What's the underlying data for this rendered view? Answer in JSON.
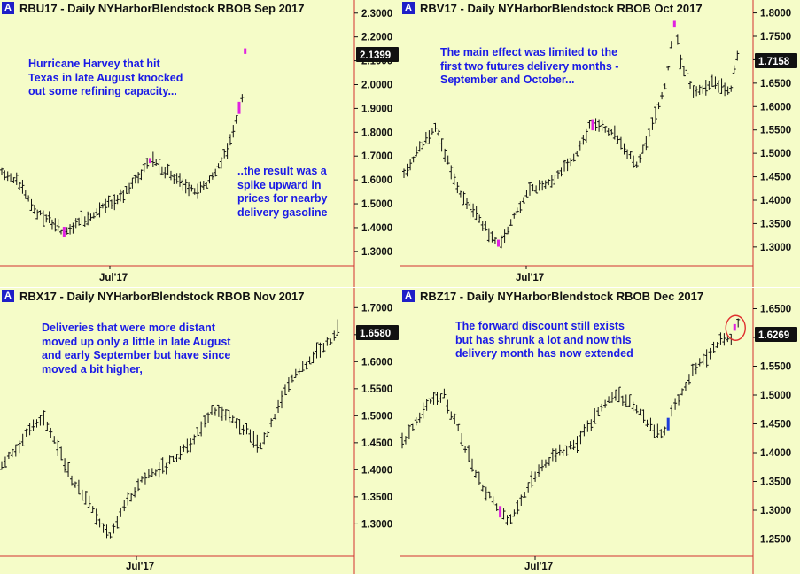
{
  "chart_data": [
    {
      "type": "ohlc",
      "badge": "A",
      "title": "RBU17 - Daily  NYHarborBlendstock RBOB Sep 2017",
      "yticks": [
        "2.3000",
        "2.2000",
        "2.1000",
        "2.0000",
        "1.9000",
        "1.8000",
        "1.7000",
        "1.6000",
        "1.5000",
        "1.4000",
        "1.3000"
      ],
      "ylim": [
        1.24,
        2.34
      ],
      "last_label": "2.1399",
      "last_value": 2.1399,
      "xlabel": "Jul'17",
      "annotations": [
        {
          "text": "Hurricane Harvey that hit\nTexas in late August knocked\nout some refining capacity..."
        },
        {
          "text": "..the result was a\nspike upward in\nprices for nearby\ndelivery gasoline"
        }
      ],
      "highlight_color": "#e020e0",
      "path": [
        [
          0,
          1.64
        ],
        [
          6,
          1.58
        ],
        [
          12,
          1.46
        ],
        [
          17,
          1.42
        ],
        [
          21,
          1.38
        ],
        [
          26,
          1.42
        ],
        [
          31,
          1.46
        ],
        [
          36,
          1.5
        ],
        [
          42,
          1.55
        ],
        [
          47,
          1.62
        ],
        [
          50,
          1.68
        ],
        [
          53,
          1.66
        ],
        [
          57,
          1.62
        ],
        [
          62,
          1.57
        ],
        [
          66,
          1.55
        ],
        [
          70,
          1.6
        ],
        [
          73,
          1.66
        ],
        [
          76,
          1.72
        ],
        [
          78,
          1.8
        ],
        [
          80,
          1.9
        ],
        [
          81,
          1.94
        ],
        [
          82,
          2.14
        ]
      ]
    },
    {
      "type": "ohlc",
      "badge": "A",
      "title": "RBV17 - Daily  NYHarborBlendstock RBOB Oct 2017",
      "yticks": [
        "1.8000",
        "1.7500",
        "1.7000",
        "1.6500",
        "1.6000",
        "1.5500",
        "1.5000",
        "1.4500",
        "1.4000",
        "1.3500",
        "1.3000"
      ],
      "ylim": [
        1.26,
        1.82
      ],
      "last_label": "1.7158",
      "last_value": 1.7158,
      "xlabel": "Jul'17",
      "annotations": [
        {
          "text": "The main effect was limited to the\nfirst two futures delivery months -\nSeptember and October..."
        }
      ],
      "highlight_color": "#e020e0",
      "path": [
        [
          0,
          1.46
        ],
        [
          6,
          1.52
        ],
        [
          10,
          1.56
        ],
        [
          14,
          1.48
        ],
        [
          19,
          1.4
        ],
        [
          24,
          1.36
        ],
        [
          28,
          1.32
        ],
        [
          31,
          1.31
        ],
        [
          35,
          1.37
        ],
        [
          40,
          1.42
        ],
        [
          45,
          1.43
        ],
        [
          50,
          1.46
        ],
        [
          55,
          1.5
        ],
        [
          59,
          1.56
        ],
        [
          63,
          1.56
        ],
        [
          67,
          1.54
        ],
        [
          71,
          1.5
        ],
        [
          74,
          1.48
        ],
        [
          77,
          1.52
        ],
        [
          80,
          1.58
        ],
        [
          83,
          1.64
        ],
        [
          86,
          1.78
        ],
        [
          88,
          1.7
        ],
        [
          91,
          1.64
        ],
        [
          94,
          1.63
        ],
        [
          98,
          1.65
        ],
        [
          101,
          1.64
        ],
        [
          104,
          1.64
        ],
        [
          106,
          1.71
        ]
      ]
    },
    {
      "type": "ohlc",
      "badge": "A",
      "title": "RBX17 - Daily  NYHarborBlendstock RBOB Nov 2017",
      "yticks": [
        "1.7000",
        "1.6500",
        "1.6000",
        "1.5500",
        "1.5000",
        "1.4500",
        "1.4000",
        "1.3500",
        "1.3000"
      ],
      "ylim": [
        1.24,
        1.73
      ],
      "last_label": "1.6580",
      "last_value": 1.658,
      "xlabel": "Jul'17",
      "annotations": [
        {
          "text": "Deliveries that were more distant\nmoved up only a little in late August\nand early September but have since\nmoved a bit higher,"
        }
      ],
      "highlight_color": "#e020e0",
      "path": [
        [
          0,
          1.41
        ],
        [
          4,
          1.44
        ],
        [
          8,
          1.48
        ],
        [
          12,
          1.5
        ],
        [
          16,
          1.44
        ],
        [
          20,
          1.38
        ],
        [
          24,
          1.35
        ],
        [
          28,
          1.3
        ],
        [
          31,
          1.28
        ],
        [
          35,
          1.33
        ],
        [
          40,
          1.38
        ],
        [
          45,
          1.4
        ],
        [
          50,
          1.42
        ],
        [
          55,
          1.46
        ],
        [
          60,
          1.51
        ],
        [
          65,
          1.5
        ],
        [
          70,
          1.47
        ],
        [
          74,
          1.44
        ],
        [
          78,
          1.5
        ],
        [
          82,
          1.56
        ],
        [
          86,
          1.59
        ],
        [
          90,
          1.62
        ],
        [
          94,
          1.64
        ],
        [
          96,
          1.66
        ]
      ]
    },
    {
      "type": "ohlc",
      "badge": "A",
      "title": "RBZ17 - Daily  NYHarborBlendstock RBOB Dec 2017",
      "yticks": [
        "1.6500",
        "1.6000",
        "1.5500",
        "1.5000",
        "1.4500",
        "1.4000",
        "1.3500",
        "1.3000",
        "1.2500"
      ],
      "ylim": [
        1.22,
        1.68
      ],
      "last_label": "1.6269",
      "last_value": 1.6269,
      "xlabel": "Jul'17",
      "annotations": [
        {
          "text": "The forward discount still exists\nbut has shrunk a lot and now this\ndelivery month has now extended"
        }
      ],
      "highlight_color": "#e020e0",
      "blue_color": "#1e3cdc",
      "circle_color": "#e03030",
      "path": [
        [
          0,
          1.42
        ],
        [
          4,
          1.45
        ],
        [
          8,
          1.49
        ],
        [
          12,
          1.5
        ],
        [
          16,
          1.44
        ],
        [
          20,
          1.38
        ],
        [
          24,
          1.33
        ],
        [
          28,
          1.3
        ],
        [
          31,
          1.28
        ],
        [
          35,
          1.33
        ],
        [
          40,
          1.38
        ],
        [
          45,
          1.4
        ],
        [
          50,
          1.42
        ],
        [
          55,
          1.46
        ],
        [
          60,
          1.5
        ],
        [
          65,
          1.49
        ],
        [
          70,
          1.45
        ],
        [
          74,
          1.43
        ],
        [
          78,
          1.48
        ],
        [
          82,
          1.53
        ],
        [
          86,
          1.56
        ],
        [
          90,
          1.59
        ],
        [
          94,
          1.6
        ],
        [
          96,
          1.63
        ]
      ]
    }
  ]
}
